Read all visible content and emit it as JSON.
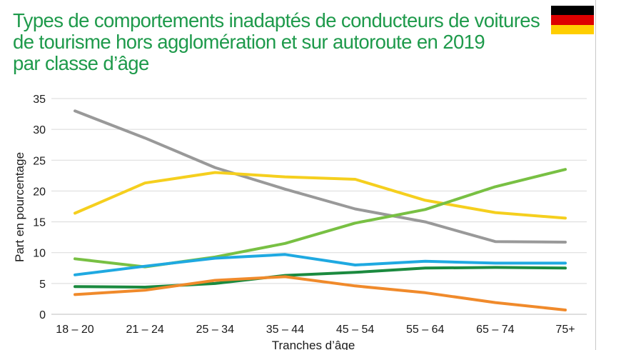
{
  "title_lines": [
    "Types de comportements inadaptés de conducteurs de voitures",
    "de tourisme hors agglomération et sur autoroute en 2019",
    "par classe d’âge"
  ],
  "flag": {
    "name": "germany-flag",
    "colors": [
      "#000000",
      "#dd0000",
      "#ffce00"
    ]
  },
  "colors": {
    "title": "#1e9a4b",
    "grid": "#d9d9d9"
  },
  "chart_data": {
    "type": "line",
    "title": "Types de comportements inadaptés de conducteurs de voitures de tourisme hors agglomération et sur autoroute en 2019 par classe d’âge",
    "xlabel": "Tranches d’âge",
    "ylabel": "Part en pourcentage",
    "ylim": [
      0,
      35
    ],
    "yticks": [
      0,
      5,
      10,
      15,
      20,
      25,
      30,
      35
    ],
    "grid": true,
    "legend": "none",
    "categories": [
      "18 – 20",
      "21 – 24",
      "25 – 34",
      "35 – 44",
      "45 – 54",
      "55 – 64",
      "65 – 74",
      "75+"
    ],
    "series": [
      {
        "color": "#999999",
        "values": [
          33.0,
          28.6,
          23.8,
          20.3,
          17.1,
          15.0,
          11.8,
          11.7
        ]
      },
      {
        "color": "#f5cf1e",
        "values": [
          16.4,
          21.3,
          23.0,
          22.3,
          21.9,
          18.5,
          16.5,
          15.6
        ]
      },
      {
        "color": "#78c043",
        "values": [
          9.0,
          7.7,
          9.3,
          11.5,
          14.8,
          17.0,
          20.7,
          23.5
        ]
      },
      {
        "color": "#1fa9e1",
        "values": [
          6.4,
          7.8,
          9.1,
          9.7,
          8.0,
          8.6,
          8.3,
          8.3
        ]
      },
      {
        "color": "#1b8a3f",
        "values": [
          4.5,
          4.4,
          5.0,
          6.3,
          6.8,
          7.5,
          7.6,
          7.5
        ]
      },
      {
        "color": "#f08a2b",
        "values": [
          3.2,
          3.9,
          5.5,
          6.1,
          4.6,
          3.5,
          1.9,
          0.7
        ]
      }
    ]
  }
}
